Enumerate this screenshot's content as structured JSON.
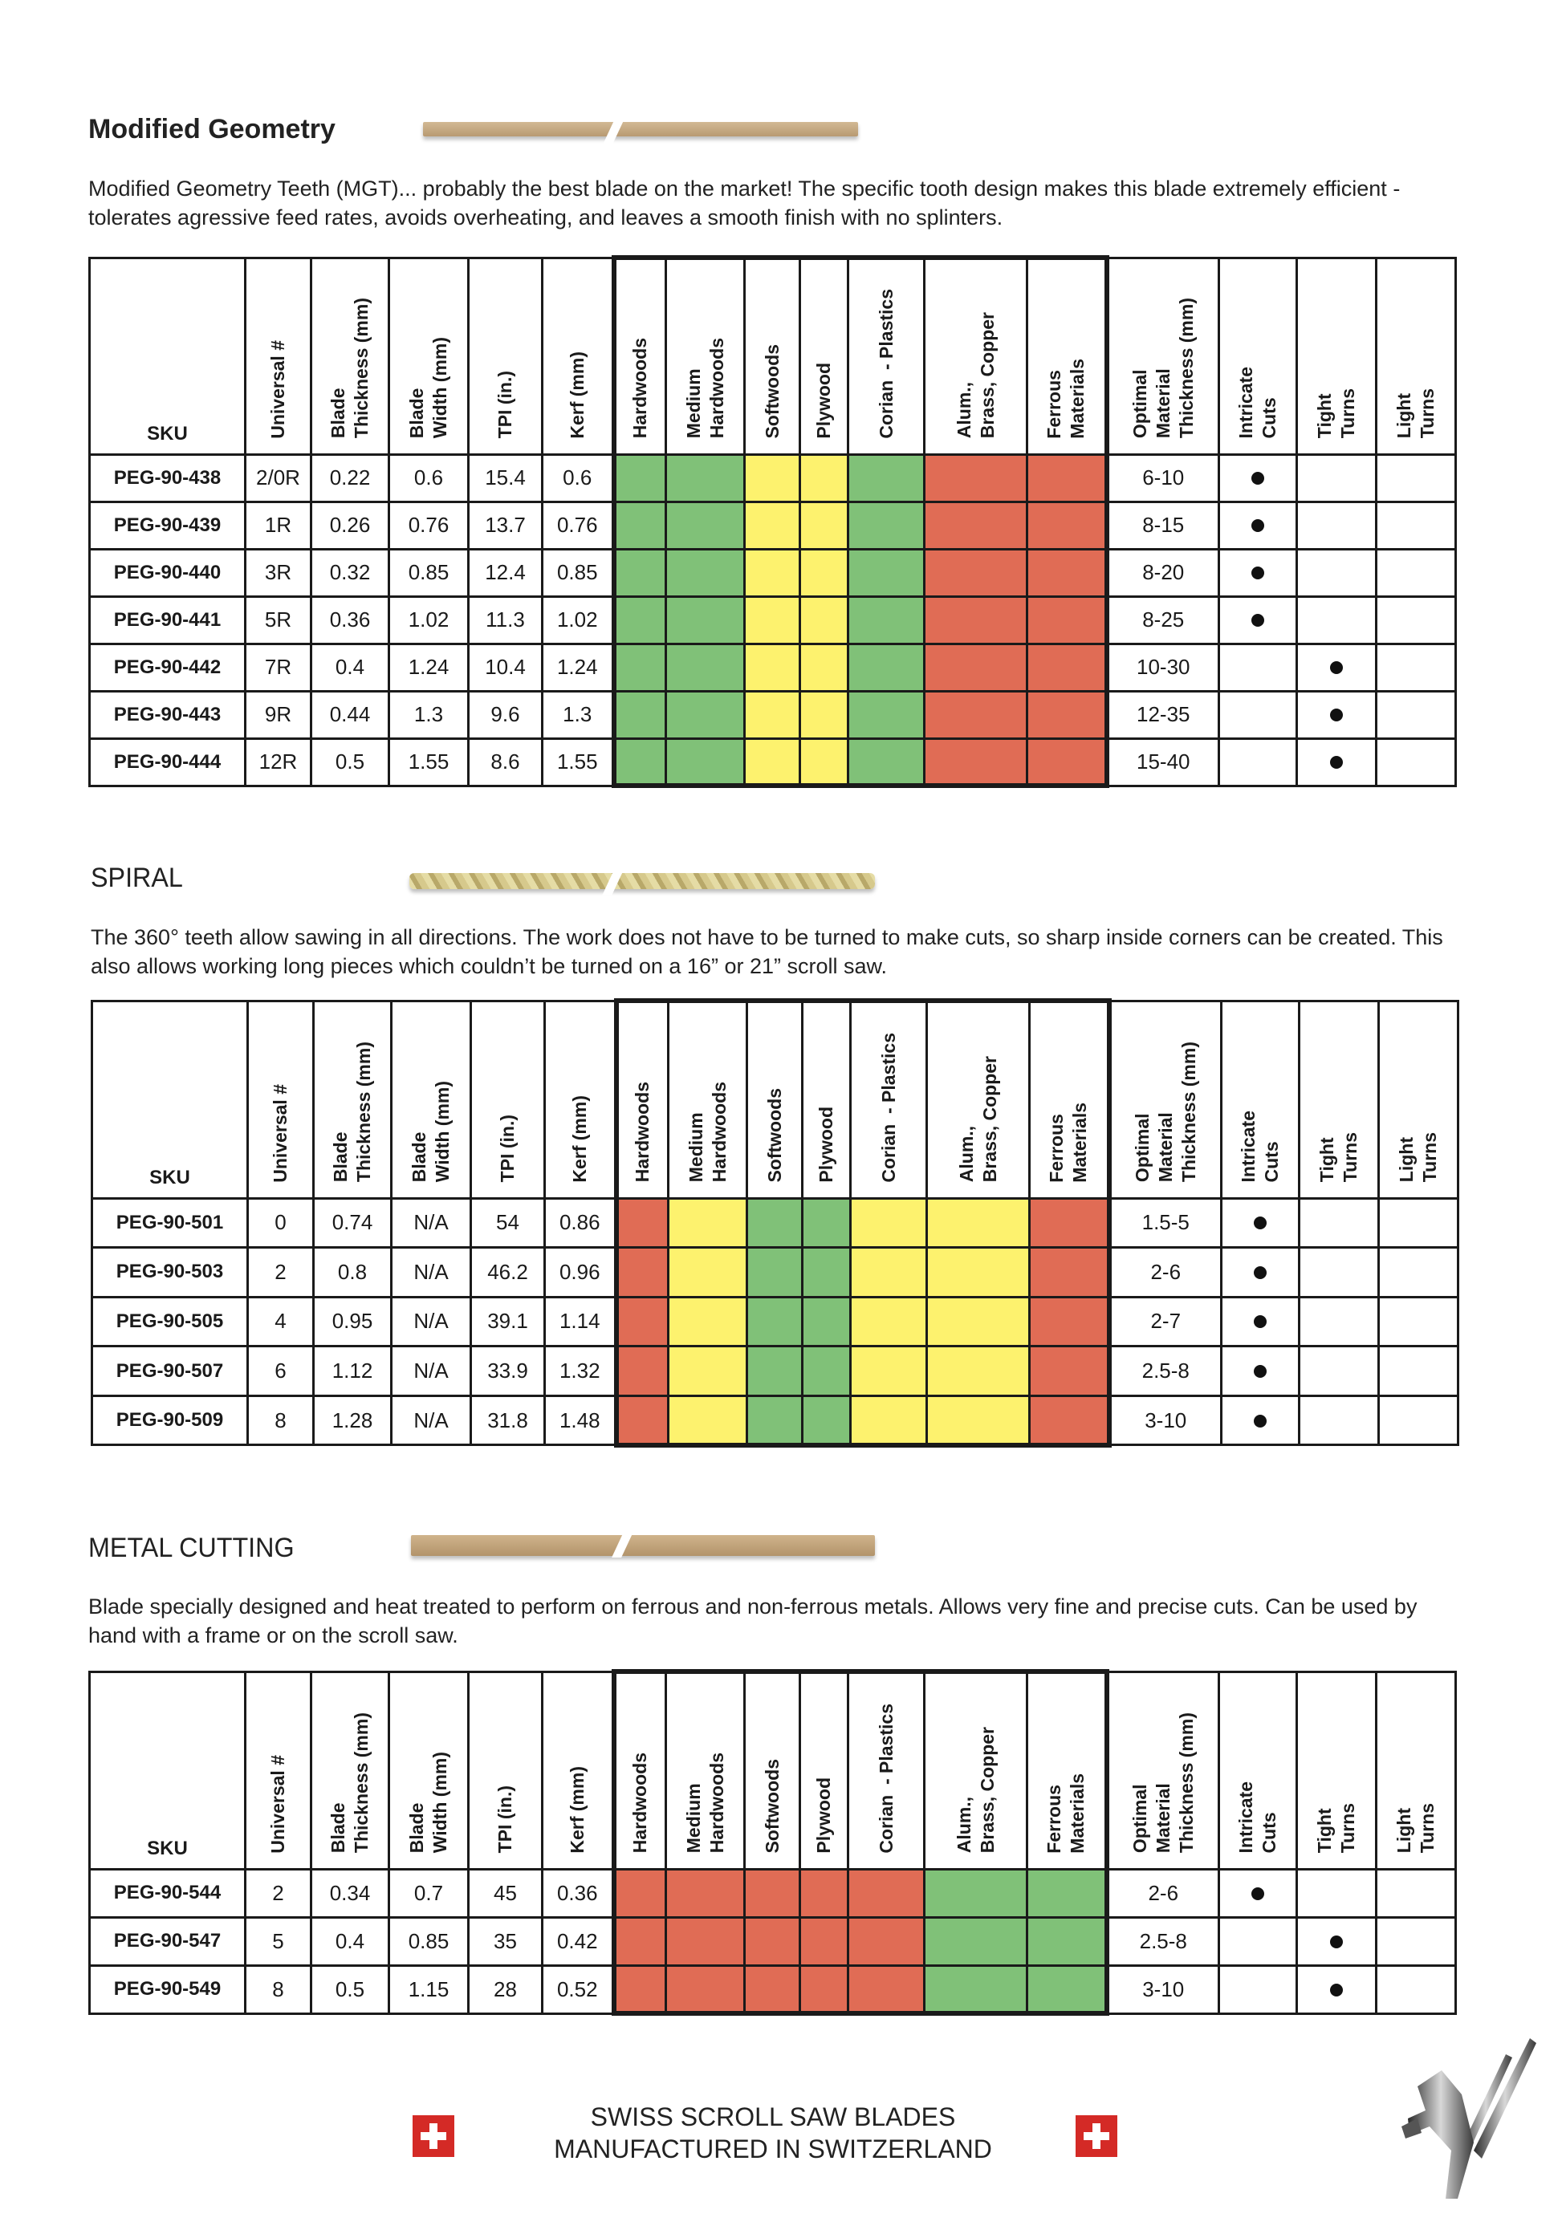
{
  "colors": {
    "green": "#80c178",
    "yellow": "#fdf26e",
    "red": "#e06c55"
  },
  "columns": [
    "SKU",
    "Universal #",
    "Blade\nThickness (mm)",
    "Blade\nWidth (mm)",
    "TPI (in.)",
    "Kerf (mm)",
    "Hardwoods",
    "Medium\nHardwoods",
    "Softwoods",
    "Plywood",
    "Corian  - Plastics",
    "Alum.,\nBrass, Copper",
    "Ferrous\nMaterials",
    "Optimal\nMaterial\nThickness (mm)",
    "Intricate\nCuts",
    "Tight\nTurns",
    "Light\nTurns"
  ],
  "sections": [
    {
      "title": "Modified Geometry",
      "blade_image": "modified-geometry-blade",
      "description": "Modified Geometry Teeth (MGT)... probably the best blade on the market! The specific tooth design makes this blade extremely efficient - tolerates agressive feed rates, avoids overheating, and leaves a smooth finish with no splinters.",
      "rows": [
        {
          "sku": "PEG-90-438",
          "universal": "2/0R",
          "thickness": "0.22",
          "width": "0.6",
          "tpi": "15.4",
          "kerf": "0.6",
          "materials": [
            "green",
            "green",
            "yellow",
            "yellow",
            "green",
            "red",
            "red"
          ],
          "optimal": "6-10",
          "use": "intricate"
        },
        {
          "sku": "PEG-90-439",
          "universal": "1R",
          "thickness": "0.26",
          "width": "0.76",
          "tpi": "13.7",
          "kerf": "0.76",
          "materials": [
            "green",
            "green",
            "yellow",
            "yellow",
            "green",
            "red",
            "red"
          ],
          "optimal": "8-15",
          "use": "intricate"
        },
        {
          "sku": "PEG-90-440",
          "universal": "3R",
          "thickness": "0.32",
          "width": "0.85",
          "tpi": "12.4",
          "kerf": "0.85",
          "materials": [
            "green",
            "green",
            "yellow",
            "yellow",
            "green",
            "red",
            "red"
          ],
          "optimal": "8-20",
          "use": "intricate"
        },
        {
          "sku": "PEG-90-441",
          "universal": "5R",
          "thickness": "0.36",
          "width": "1.02",
          "tpi": "11.3",
          "kerf": "1.02",
          "materials": [
            "green",
            "green",
            "yellow",
            "yellow",
            "green",
            "red",
            "red"
          ],
          "optimal": "8-25",
          "use": "intricate"
        },
        {
          "sku": "PEG-90-442",
          "universal": "7R",
          "thickness": "0.4",
          "width": "1.24",
          "tpi": "10.4",
          "kerf": "1.24",
          "materials": [
            "green",
            "green",
            "yellow",
            "yellow",
            "green",
            "red",
            "red"
          ],
          "optimal": "10-30",
          "use": "tight"
        },
        {
          "sku": "PEG-90-443",
          "universal": "9R",
          "thickness": "0.44",
          "width": "1.3",
          "tpi": "9.6",
          "kerf": "1.3",
          "materials": [
            "green",
            "green",
            "yellow",
            "yellow",
            "green",
            "red",
            "red"
          ],
          "optimal": "12-35",
          "use": "tight"
        },
        {
          "sku": "PEG-90-444",
          "universal": "12R",
          "thickness": "0.5",
          "width": "1.55",
          "tpi": "8.6",
          "kerf": "1.55",
          "materials": [
            "green",
            "green",
            "yellow",
            "yellow",
            "green",
            "red",
            "red"
          ],
          "optimal": "15-40",
          "use": "tight"
        }
      ]
    },
    {
      "title": "SPIRAL",
      "blade_image": "spiral-blade",
      "description": "The 360° teeth allow sawing in all directions. The work does not have to be turned to make cuts, so sharp inside corners can be created. This also allows working long pieces which couldn’t be turned on a 16” or 21” scroll saw.",
      "rows": [
        {
          "sku": "PEG-90-501",
          "universal": "0",
          "thickness": "0.74",
          "width": "N/A",
          "tpi": "54",
          "kerf": "0.86",
          "materials": [
            "red",
            "yellow",
            "green",
            "green",
            "yellow",
            "yellow",
            "red"
          ],
          "optimal": "1.5-5",
          "use": "intricate"
        },
        {
          "sku": "PEG-90-503",
          "universal": "2",
          "thickness": "0.8",
          "width": "N/A",
          "tpi": "46.2",
          "kerf": "0.96",
          "materials": [
            "red",
            "yellow",
            "green",
            "green",
            "yellow",
            "yellow",
            "red"
          ],
          "optimal": "2-6",
          "use": "intricate"
        },
        {
          "sku": "PEG-90-505",
          "universal": "4",
          "thickness": "0.95",
          "width": "N/A",
          "tpi": "39.1",
          "kerf": "1.14",
          "materials": [
            "red",
            "yellow",
            "green",
            "green",
            "yellow",
            "yellow",
            "red"
          ],
          "optimal": "2-7",
          "use": "intricate"
        },
        {
          "sku": "PEG-90-507",
          "universal": "6",
          "thickness": "1.12",
          "width": "N/A",
          "tpi": "33.9",
          "kerf": "1.32",
          "materials": [
            "red",
            "yellow",
            "green",
            "green",
            "yellow",
            "yellow",
            "red"
          ],
          "optimal": "2.5-8",
          "use": "intricate"
        },
        {
          "sku": "PEG-90-509",
          "universal": "8",
          "thickness": "1.28",
          "width": "N/A",
          "tpi": "31.8",
          "kerf": "1.48",
          "materials": [
            "red",
            "yellow",
            "green",
            "green",
            "yellow",
            "yellow",
            "red"
          ],
          "optimal": "3-10",
          "use": "intricate"
        }
      ]
    },
    {
      "title": "METAL CUTTING",
      "blade_image": "metal-cutting-blade",
      "description": "Blade specially designed and heat treated to perform on ferrous and non-ferrous metals. Allows very fine and precise cuts. Can be used by hand with a frame or on the scroll saw.",
      "rows": [
        {
          "sku": "PEG-90-544",
          "universal": "2",
          "thickness": "0.34",
          "width": "0.7",
          "tpi": "45",
          "kerf": "0.36",
          "materials": [
            "red",
            "red",
            "red",
            "red",
            "red",
            "green",
            "green"
          ],
          "optimal": "2-6",
          "use": "intricate"
        },
        {
          "sku": "PEG-90-547",
          "universal": "5",
          "thickness": "0.4",
          "width": "0.85",
          "tpi": "35",
          "kerf": "0.42",
          "materials": [
            "red",
            "red",
            "red",
            "red",
            "red",
            "green",
            "green"
          ],
          "optimal": "2.5-8",
          "use": "tight"
        },
        {
          "sku": "PEG-90-549",
          "universal": "8",
          "thickness": "0.5",
          "width": "1.15",
          "tpi": "28",
          "kerf": "0.52",
          "materials": [
            "red",
            "red",
            "red",
            "red",
            "red",
            "green",
            "green"
          ],
          "optimal": "3-10",
          "use": "tight"
        }
      ]
    }
  ],
  "footer": {
    "line1": "SWISS SCROLL SAW BLADES",
    "line2": "MANUFACTURED IN SWITZERLAND",
    "flag_icon": "swiss-flag-icon",
    "logo": "pegas-horse-logo"
  }
}
